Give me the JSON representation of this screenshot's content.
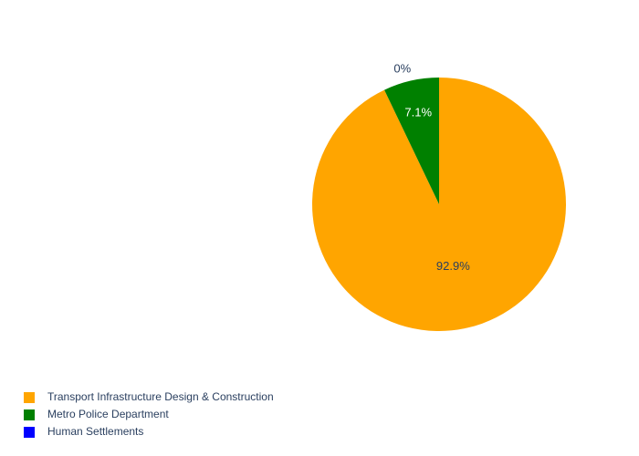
{
  "chart_data": {
    "type": "pie",
    "title": "",
    "categories": [
      "Transport Infrastructure Design & Construction",
      "Metro Police Department",
      "Human Settlements"
    ],
    "values": [
      92.9,
      7.1,
      0
    ],
    "percent_labels": [
      "92.9%",
      "7.1%",
      "0%"
    ],
    "colors": [
      "#ffa500",
      "#008000",
      "#0000ff"
    ],
    "legend_position": "bottom-left"
  },
  "legend": {
    "items": [
      {
        "label": "Transport Infrastructure Design & Construction",
        "color": "#ffa500"
      },
      {
        "label": "Metro Police Department",
        "color": "#008000"
      },
      {
        "label": "Human Settlements",
        "color": "#0000ff"
      }
    ]
  },
  "colors": {
    "text": "#2a3f5f",
    "inside_label_light": "#ffffff",
    "inside_label_dark": "#2a3f5f",
    "background": "#ffffff"
  }
}
